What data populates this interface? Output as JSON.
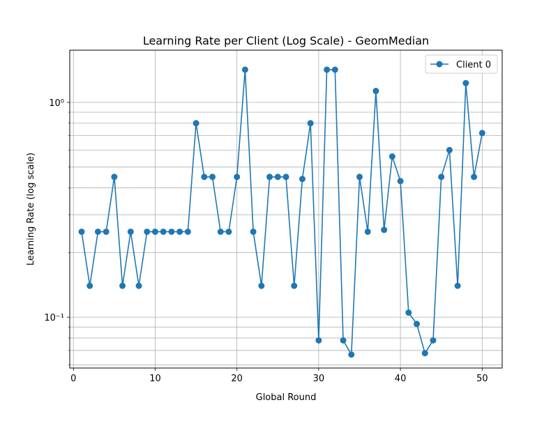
{
  "chart_data": {
    "type": "line",
    "title": "Learning Rate per Client (Log Scale) - GeomMedian",
    "xlabel": "Global Round",
    "ylabel": "Learning Rate (log scale)",
    "y_scale": "log",
    "grid": true,
    "grid_which": "both",
    "legend_position": "upper right",
    "xlim": [
      -0.45,
      52.45
    ],
    "ylim": [
      0.058,
      1.75
    ],
    "x_ticks": [
      0,
      10,
      20,
      30,
      40,
      50
    ],
    "x_tick_labels": [
      "0",
      "10",
      "20",
      "30",
      "40",
      "50"
    ],
    "y_major_ticks": [
      0.1,
      1
    ],
    "y_major_tick_labels": [
      "10⁻¹",
      "10⁰"
    ],
    "y_minor_ticks": [
      0.06,
      0.07,
      0.08,
      0.09,
      0.2,
      0.3,
      0.4,
      0.5,
      0.6,
      0.7,
      0.8,
      0.9
    ],
    "series": [
      {
        "name": "Client 0",
        "color": "#1f77b4",
        "marker": "circle",
        "x": [
          1,
          2,
          3,
          4,
          5,
          6,
          7,
          8,
          9,
          10,
          11,
          12,
          13,
          14,
          15,
          16,
          17,
          18,
          19,
          20,
          21,
          22,
          23,
          24,
          25,
          26,
          27,
          28,
          29,
          30,
          31,
          32,
          33,
          34,
          35,
          36,
          37,
          38,
          39,
          40,
          41,
          42,
          43,
          44,
          45,
          46,
          47,
          48,
          49,
          50
        ],
        "values": [
          0.25,
          0.14,
          0.25,
          0.25,
          0.45,
          0.14,
          0.25,
          0.14,
          0.25,
          0.25,
          0.25,
          0.25,
          0.25,
          0.25,
          0.8,
          0.45,
          0.45,
          0.25,
          0.25,
          0.45,
          1.42,
          0.25,
          0.14,
          0.45,
          0.45,
          0.45,
          0.14,
          0.44,
          0.8,
          0.078,
          1.42,
          1.42,
          0.078,
          0.067,
          0.45,
          0.25,
          1.13,
          0.255,
          0.56,
          0.43,
          0.105,
          0.093,
          0.068,
          0.078,
          0.45,
          0.6,
          0.14,
          1.23,
          0.45,
          0.72
        ]
      }
    ]
  }
}
